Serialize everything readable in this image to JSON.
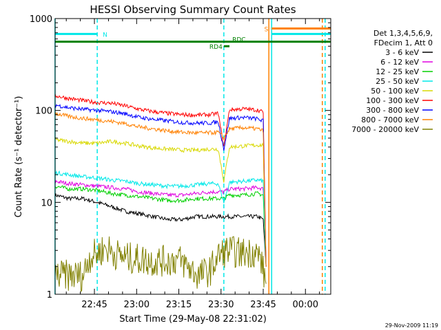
{
  "chart_data": {
    "type": "line",
    "title": "HESSI Observing Summary Count Rates",
    "xlabel": "Start Time (29-May-08 22:31:02)",
    "ylabel": "Count Rate (s⁻¹ detector⁻¹)",
    "y_scale": "log",
    "ylim": [
      1,
      1000
    ],
    "y_ticks": [
      {
        "value": 1,
        "label": "1"
      },
      {
        "value": 10,
        "label": "10"
      },
      {
        "value": 100,
        "label": "100"
      },
      {
        "value": 1000,
        "label": "1000"
      }
    ],
    "xlim": [
      "22:31:02",
      "00:09:00"
    ],
    "x_ticks": [
      {
        "time": "22:45",
        "label": "22:45"
      },
      {
        "time": "23:00",
        "label": "23:00"
      },
      {
        "time": "23:15",
        "label": "23:15"
      },
      {
        "time": "23:30",
        "label": "23:30"
      },
      {
        "time": "23:45",
        "label": "23:45"
      },
      {
        "time": "00:00",
        "label": "00:00"
      }
    ],
    "legend": {
      "placement": "right",
      "header": [
        "Det 1,3,4,5,6,9,",
        "FDecim 1, Att 0"
      ]
    },
    "series": [
      {
        "name": "3 - 6 keV",
        "color": "#000000",
        "points": [
          [
            "22:31",
            12
          ],
          [
            "22:36",
            11
          ],
          [
            "22:41",
            11
          ],
          [
            "22:46",
            10
          ],
          [
            "22:51",
            9
          ],
          [
            "22:56",
            8
          ],
          [
            "23:01",
            7.5
          ],
          [
            "23:06",
            7
          ],
          [
            "23:11",
            6.5
          ],
          [
            "23:16",
            6.5
          ],
          [
            "23:21",
            7
          ],
          [
            "23:26",
            7
          ],
          [
            "23:29",
            7
          ],
          [
            "23:31",
            7
          ],
          [
            "23:33",
            7
          ],
          [
            "23:38",
            7
          ],
          [
            "23:43",
            7
          ],
          [
            "23:45",
            6.5
          ],
          [
            "23:46",
            2
          ]
        ]
      },
      {
        "name": "6 - 12 keV",
        "color": "#e000e0",
        "points": [
          [
            "22:31",
            17
          ],
          [
            "22:36",
            16
          ],
          [
            "22:41",
            15.5
          ],
          [
            "22:46",
            15
          ],
          [
            "22:51",
            14.5
          ],
          [
            "22:56",
            14
          ],
          [
            "23:01",
            13
          ],
          [
            "23:06",
            12.5
          ],
          [
            "23:11",
            12
          ],
          [
            "23:16",
            12
          ],
          [
            "23:21",
            12.5
          ],
          [
            "23:26",
            13
          ],
          [
            "23:29",
            13
          ],
          [
            "23:31",
            13
          ],
          [
            "23:33",
            14
          ],
          [
            "23:38",
            14
          ],
          [
            "23:43",
            14.5
          ],
          [
            "23:45",
            14
          ],
          [
            "23:46",
            2
          ]
        ]
      },
      {
        "name": "12 - 25 keV",
        "color": "#00d000",
        "points": [
          [
            "22:31",
            15
          ],
          [
            "22:36",
            14
          ],
          [
            "22:41",
            14
          ],
          [
            "22:46",
            13.5
          ],
          [
            "22:51",
            12.5
          ],
          [
            "22:56",
            12
          ],
          [
            "23:01",
            11.5
          ],
          [
            "23:06",
            11
          ],
          [
            "23:11",
            10.5
          ],
          [
            "23:16",
            10.5
          ],
          [
            "23:21",
            11
          ],
          [
            "23:26",
            11
          ],
          [
            "23:29",
            11
          ],
          [
            "23:31",
            11
          ],
          [
            "23:33",
            12
          ],
          [
            "23:38",
            12
          ],
          [
            "23:43",
            12.5
          ],
          [
            "23:45",
            12
          ],
          [
            "23:46",
            2
          ]
        ]
      },
      {
        "name": "25 - 50 keV",
        "color": "#00e8e8",
        "points": [
          [
            "22:31",
            21
          ],
          [
            "22:36",
            20
          ],
          [
            "22:41",
            19
          ],
          [
            "22:46",
            18.5
          ],
          [
            "22:51",
            17.5
          ],
          [
            "22:56",
            17
          ],
          [
            "23:01",
            16
          ],
          [
            "23:06",
            15.5
          ],
          [
            "23:11",
            15
          ],
          [
            "23:16",
            15
          ],
          [
            "23:21",
            15.5
          ],
          [
            "23:26",
            16
          ],
          [
            "23:29",
            16
          ],
          [
            "23:31",
            10
          ],
          [
            "23:33",
            16.5
          ],
          [
            "23:38",
            17
          ],
          [
            "23:43",
            17.5
          ],
          [
            "23:45",
            17
          ],
          [
            "23:46",
            2
          ]
        ]
      },
      {
        "name": "50 - 100 keV",
        "color": "#d8d800",
        "points": [
          [
            "22:31",
            48
          ],
          [
            "22:36",
            46
          ],
          [
            "22:41",
            44
          ],
          [
            "22:46",
            44
          ],
          [
            "22:51",
            46
          ],
          [
            "22:56",
            44
          ],
          [
            "23:01",
            41
          ],
          [
            "23:06",
            39
          ],
          [
            "23:11",
            38
          ],
          [
            "23:16",
            37
          ],
          [
            "23:21",
            37
          ],
          [
            "23:26",
            38
          ],
          [
            "23:29",
            38
          ],
          [
            "23:31",
            17
          ],
          [
            "23:33",
            40
          ],
          [
            "23:38",
            41
          ],
          [
            "23:43",
            42
          ],
          [
            "23:45",
            42
          ],
          [
            "23:46",
            2
          ]
        ]
      },
      {
        "name": "100 - 300 keV",
        "color": "#ff0000",
        "points": [
          [
            "22:31",
            145
          ],
          [
            "22:36",
            135
          ],
          [
            "22:41",
            128
          ],
          [
            "22:46",
            122
          ],
          [
            "22:51",
            120
          ],
          [
            "22:56",
            112
          ],
          [
            "23:01",
            103
          ],
          [
            "23:06",
            97
          ],
          [
            "23:11",
            93
          ],
          [
            "23:16",
            90
          ],
          [
            "23:21",
            89
          ],
          [
            "23:26",
            90
          ],
          [
            "23:29",
            93
          ],
          [
            "23:31",
            40
          ],
          [
            "23:33",
            102
          ],
          [
            "23:38",
            104
          ],
          [
            "23:43",
            101
          ],
          [
            "23:45",
            96
          ],
          [
            "23:46",
            2
          ]
        ]
      },
      {
        "name": "300 - 800 keV",
        "color": "#0000ff",
        "points": [
          [
            "22:31",
            115
          ],
          [
            "22:36",
            107
          ],
          [
            "22:41",
            103
          ],
          [
            "22:46",
            100
          ],
          [
            "22:51",
            97
          ],
          [
            "22:56",
            92
          ],
          [
            "23:01",
            84
          ],
          [
            "23:06",
            80
          ],
          [
            "23:11",
            77
          ],
          [
            "23:16",
            74
          ],
          [
            "23:21",
            73
          ],
          [
            "23:26",
            73
          ],
          [
            "23:29",
            75
          ],
          [
            "23:31",
            38
          ],
          [
            "23:33",
            82
          ],
          [
            "23:38",
            84
          ],
          [
            "23:43",
            81
          ],
          [
            "23:45",
            77
          ],
          [
            "23:46",
            2
          ]
        ]
      },
      {
        "name": "800 - 7000 keV",
        "color": "#ff8000",
        "points": [
          [
            "22:31",
            93
          ],
          [
            "22:36",
            86
          ],
          [
            "22:41",
            82
          ],
          [
            "22:46",
            79
          ],
          [
            "22:51",
            76
          ],
          [
            "22:56",
            72
          ],
          [
            "23:01",
            66
          ],
          [
            "23:06",
            63
          ],
          [
            "23:11",
            60
          ],
          [
            "23:16",
            58
          ],
          [
            "23:21",
            57
          ],
          [
            "23:26",
            57
          ],
          [
            "23:29",
            58
          ],
          [
            "23:31",
            50
          ],
          [
            "23:33",
            63
          ],
          [
            "23:38",
            65
          ],
          [
            "23:43",
            63
          ],
          [
            "23:45",
            60
          ],
          [
            "23:46",
            2
          ]
        ]
      },
      {
        "name": "7000 - 20000 keV",
        "color": "#808000",
        "points": [
          [
            "22:31",
            1.6
          ],
          [
            "22:36",
            1.6
          ],
          [
            "22:41",
            1.6
          ],
          [
            "22:43",
            2.5
          ],
          [
            "22:46",
            2.8
          ],
          [
            "22:49",
            3.2
          ],
          [
            "22:52",
            2.8
          ],
          [
            "22:56",
            2.5
          ],
          [
            "23:01",
            2.4
          ],
          [
            "23:06",
            2.3
          ],
          [
            "23:11",
            2.3
          ],
          [
            "23:15",
            2.4
          ],
          [
            "23:19",
            1.9
          ],
          [
            "23:22",
            1.6
          ],
          [
            "23:26",
            1.8
          ],
          [
            "23:29",
            2.6
          ],
          [
            "23:32",
            3.0
          ],
          [
            "23:37",
            2.8
          ],
          [
            "23:42",
            2.9
          ],
          [
            "23:44",
            2.5
          ],
          [
            "23:46",
            1.3
          ]
        ]
      }
    ],
    "flag_bars": [
      {
        "label": "N",
        "color": "#00e8e8",
        "value": 680,
        "start": "22:31",
        "end": "22:46"
      },
      {
        "label": "",
        "color": "#008000",
        "value": 560,
        "start": "22:31",
        "end": "00:09"
      },
      {
        "label": "RDC",
        "color": "#008000",
        "value": 600,
        "start": "23:34",
        "end": "23:34"
      },
      {
        "label": "RD4",
        "color": "#008000",
        "value": 500,
        "start": "23:31",
        "end": "23:33"
      },
      {
        "label": "S",
        "color": "#ff8000",
        "value": 780,
        "start": "23:48",
        "end": "00:09"
      },
      {
        "label": "",
        "color": "#00e8e8",
        "value": 680,
        "start": "23:48",
        "end": "00:09"
      }
    ],
    "vertical_markers": [
      {
        "time": "22:31",
        "color": "#00e8e8",
        "style": "solid"
      },
      {
        "time": "22:46",
        "color": "#00e8e8",
        "style": "dashed"
      },
      {
        "time": "23:31",
        "color": "#00e8e8",
        "style": "dashed"
      },
      {
        "time": "23:47",
        "color": "#ff8000",
        "style": "solid"
      },
      {
        "time": "23:48",
        "color": "#00e8e8",
        "style": "solid"
      },
      {
        "time": "00:06",
        "color": "#ff8000",
        "style": "dashed"
      },
      {
        "time": "00:07",
        "color": "#00e8e8",
        "style": "dashed"
      }
    ]
  },
  "footer": {
    "timestamp": "29-Nov-2009 11:19"
  }
}
